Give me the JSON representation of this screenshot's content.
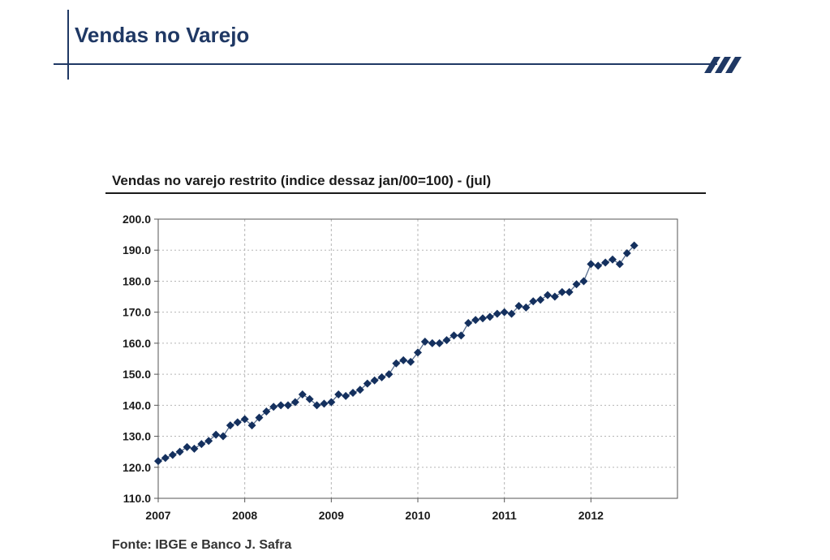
{
  "slide": {
    "title": "Vendas no Varejo",
    "accent_color": "#1f3864"
  },
  "chart_data": {
    "type": "line",
    "title": "Vendas no varejo restrito (indice dessaz jan/00=100) - (jul)",
    "xlabel": "",
    "ylabel": "",
    "ylim": [
      110,
      200
    ],
    "xlim": [
      2007,
      2013
    ],
    "y_ticks": [
      "110.0",
      "120.0",
      "130.0",
      "140.0",
      "150.0",
      "160.0",
      "170.0",
      "180.0",
      "190.0",
      "200.0"
    ],
    "x_ticks": [
      "2007",
      "2008",
      "2009",
      "2010",
      "2011",
      "2012"
    ],
    "grid": true,
    "legend": "none",
    "marker": "diamond",
    "series_color": "#14305e",
    "series": [
      {
        "x": [
          2007.0,
          2007.083,
          2007.167,
          2007.25,
          2007.333,
          2007.417,
          2007.5,
          2007.583,
          2007.667,
          2007.75,
          2007.833,
          2007.917,
          2008.0,
          2008.083,
          2008.167,
          2008.25,
          2008.333,
          2008.417,
          2008.5,
          2008.583,
          2008.667,
          2008.75,
          2008.833,
          2008.917,
          2009.0,
          2009.083,
          2009.167,
          2009.25,
          2009.333,
          2009.417,
          2009.5,
          2009.583,
          2009.667,
          2009.75,
          2009.833,
          2009.917,
          2010.0,
          2010.083,
          2010.167,
          2010.25,
          2010.333,
          2010.417,
          2010.5,
          2010.583,
          2010.667,
          2010.75,
          2010.833,
          2010.917,
          2011.0,
          2011.083,
          2011.167,
          2011.25,
          2011.333,
          2011.417,
          2011.5,
          2011.583,
          2011.667,
          2011.75,
          2011.833,
          2011.917,
          2012.0,
          2012.083,
          2012.167,
          2012.25,
          2012.333,
          2012.417,
          2012.5
        ],
        "values": [
          122.0,
          123.0,
          124.0,
          125.0,
          126.5,
          126.0,
          127.5,
          128.5,
          130.5,
          130.0,
          133.5,
          134.5,
          135.5,
          133.5,
          136.0,
          138.0,
          139.5,
          140.0,
          140.0,
          141.0,
          143.5,
          142.0,
          140.0,
          140.5,
          141.0,
          143.5,
          143.0,
          144.0,
          145.0,
          147.0,
          148.0,
          149.0,
          150.0,
          153.5,
          154.5,
          154.0,
          157.0,
          160.5,
          160.0,
          160.0,
          161.0,
          162.5,
          162.5,
          166.5,
          167.5,
          168.0,
          168.5,
          169.5,
          170.0,
          169.5,
          172.0,
          171.5,
          173.5,
          174.0,
          175.5,
          175.0,
          176.5,
          176.5,
          179.0,
          180.0,
          185.5,
          185.0,
          186.0,
          187.0,
          185.5,
          189.0,
          191.5
        ]
      }
    ]
  },
  "source": "Fonte: IBGE e Banco J. Safra"
}
